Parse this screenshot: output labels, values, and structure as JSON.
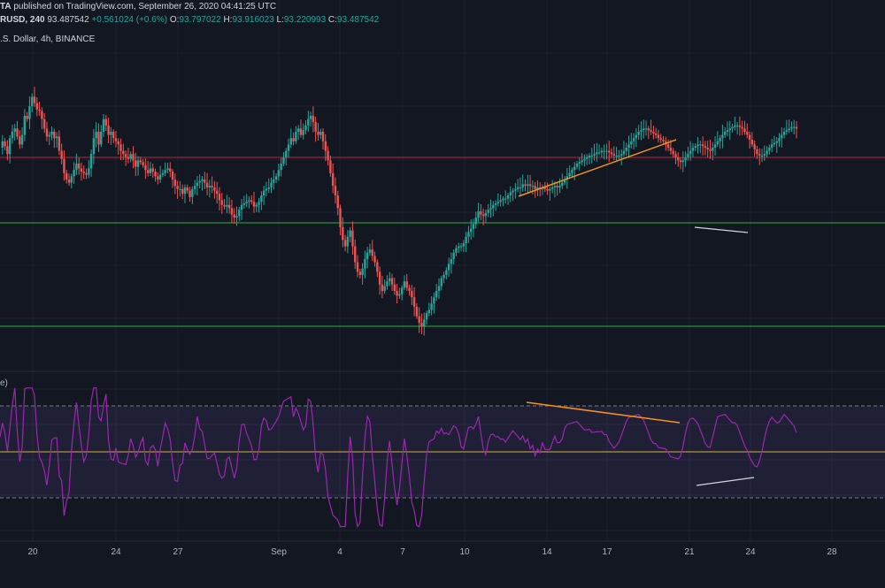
{
  "header": {
    "user": "TA",
    "published": "published on TradingView.com, September 26, 2020 04:41:25 UTC",
    "symbol": "RUSD, 240",
    "last": "93.487542",
    "change": "+0.561024 (+0.6%)",
    "o_label": "O:",
    "o": "93.797022",
    "h_label": "H:",
    "h": "93.916023",
    "l_label": "L:",
    "l": "93.220993",
    "c_label": "C:",
    "c": "93.487542",
    "subtitle": ".S. Dollar, 4h, BINANCE"
  },
  "indicator": {
    "label": "e)"
  },
  "colors": {
    "background": "#131722",
    "up": "#26a69a",
    "down": "#ef5350",
    "grid": "#1e222d",
    "resistance": "#b22833",
    "support": "#26b33a",
    "trend": "#f7931a",
    "oscillator": "#9c27b0",
    "band": "#7e57c2"
  },
  "chart_data": [
    {
      "type": "candlestick",
      "title": "",
      "xlabel": "",
      "ylabel": "",
      "x_ticks": [
        "20",
        "24",
        "27",
        "Sep",
        "4",
        "7",
        "10",
        "14",
        "17",
        "21",
        "24",
        "28"
      ],
      "closes": [
        0.6,
        0.64,
        0.61,
        0.56,
        0.66,
        0.7,
        0.72,
        0.67,
        0.62,
        0.68,
        0.8,
        0.78,
        0.86,
        0.92,
        0.88,
        0.84,
        0.83,
        0.78,
        0.72,
        0.67,
        0.68,
        0.7,
        0.66,
        0.67,
        0.58,
        0.53,
        0.44,
        0.4,
        0.38,
        0.42,
        0.46,
        0.5,
        0.47,
        0.45,
        0.44,
        0.43,
        0.47,
        0.56,
        0.66,
        0.7,
        0.62,
        0.7,
        0.78,
        0.74,
        0.68,
        0.7,
        0.66,
        0.64,
        0.62,
        0.58,
        0.56,
        0.54,
        0.53,
        0.56,
        0.52,
        0.48,
        0.52,
        0.51,
        0.49,
        0.46,
        0.44,
        0.47,
        0.45,
        0.42,
        0.4,
        0.43,
        0.44,
        0.46,
        0.47,
        0.45,
        0.4,
        0.36,
        0.34,
        0.34,
        0.31,
        0.35,
        0.33,
        0.29,
        0.34,
        0.36,
        0.38,
        0.39,
        0.4,
        0.38,
        0.35,
        0.36,
        0.35,
        0.33,
        0.31,
        0.27,
        0.24,
        0.23,
        0.24,
        0.22,
        0.18,
        0.16,
        0.17,
        0.21,
        0.24,
        0.25,
        0.26,
        0.27,
        0.26,
        0.23,
        0.24,
        0.26,
        0.3,
        0.33,
        0.34,
        0.35,
        0.38,
        0.4,
        0.42,
        0.46,
        0.5,
        0.54,
        0.58,
        0.62,
        0.66,
        0.64,
        0.7,
        0.72,
        0.68,
        0.71,
        0.74,
        0.78,
        0.8,
        0.76,
        0.7,
        0.68,
        0.7,
        0.64,
        0.58,
        0.52,
        0.44,
        0.36,
        0.3,
        0.22,
        0.1,
        0.02,
        -0.02,
        0.04,
        0.08,
        -0.02,
        -0.12,
        -0.18,
        -0.2,
        -0.16,
        -0.1,
        -0.06,
        -0.04,
        -0.08,
        -0.12,
        -0.18,
        -0.26,
        -0.3,
        -0.27,
        -0.24,
        -0.22,
        -0.26,
        -0.3,
        -0.33,
        -0.32,
        -0.28,
        -0.24,
        -0.28,
        -0.3,
        -0.34,
        -0.4,
        -0.46,
        -0.5,
        -0.52,
        -0.48,
        -0.44,
        -0.42,
        -0.38,
        -0.34,
        -0.3,
        -0.27,
        -0.22,
        -0.2,
        -0.17,
        -0.13,
        -0.1,
        -0.06,
        -0.03,
        -0.02,
        -0.02,
        0.0,
        0.04,
        0.07,
        0.09,
        0.12,
        0.16,
        0.2,
        0.18,
        0.17,
        0.19,
        0.21,
        0.22,
        0.24,
        0.25,
        0.26,
        0.27,
        0.28,
        0.28,
        0.3,
        0.32,
        0.33,
        0.34,
        0.35,
        0.35,
        0.37,
        0.36,
        0.37,
        0.36,
        0.36,
        0.34,
        0.35,
        0.34,
        0.35,
        0.34,
        0.33,
        0.34,
        0.35,
        0.36,
        0.35,
        0.36,
        0.38,
        0.4,
        0.42,
        0.44,
        0.46,
        0.48,
        0.5,
        0.51,
        0.52,
        0.53,
        0.54,
        0.55,
        0.55,
        0.56,
        0.57,
        0.57,
        0.58,
        0.58,
        0.58,
        0.57,
        0.56,
        0.55,
        0.55,
        0.55,
        0.56,
        0.58,
        0.6,
        0.62,
        0.64,
        0.66,
        0.68,
        0.7,
        0.71,
        0.72,
        0.72,
        0.71,
        0.7,
        0.69,
        0.68,
        0.66,
        0.65,
        0.64,
        0.62,
        0.6,
        0.58,
        0.56,
        0.54,
        0.52,
        0.51,
        0.52,
        0.54,
        0.56,
        0.58,
        0.6,
        0.61,
        0.62,
        0.62,
        0.61,
        0.6,
        0.59,
        0.58,
        0.6,
        0.62,
        0.64,
        0.66,
        0.68,
        0.7,
        0.71,
        0.72,
        0.73,
        0.74,
        0.74,
        0.73,
        0.72,
        0.7,
        0.68,
        0.65,
        0.62,
        0.59,
        0.56,
        0.55,
        0.55,
        0.56,
        0.58,
        0.6,
        0.62,
        0.63,
        0.64,
        0.66,
        0.68,
        0.7,
        0.71,
        0.72,
        0.73,
        0.73,
        0.72
      ]
    },
    {
      "type": "line",
      "title": "",
      "upper_band": 70,
      "mid_line": 50,
      "lower_band": 30,
      "ylim": [
        10,
        85
      ]
    }
  ]
}
